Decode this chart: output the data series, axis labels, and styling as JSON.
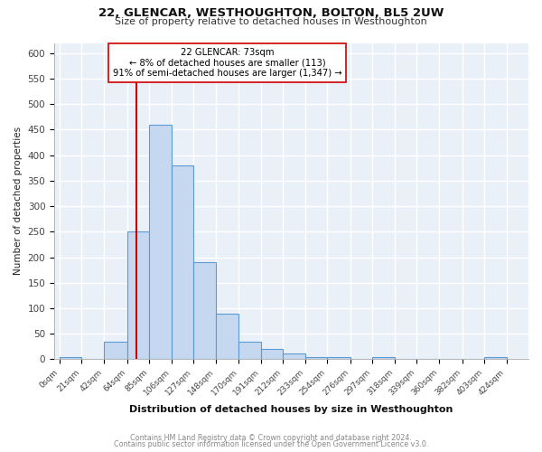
{
  "title1": "22, GLENCAR, WESTHOUGHTON, BOLTON, BL5 2UW",
  "title2": "Size of property relative to detached houses in Westhoughton",
  "xlabel": "Distribution of detached houses by size in Westhoughton",
  "ylabel": "Number of detached properties",
  "bar_edges": [
    0,
    21,
    42,
    64,
    85,
    106,
    127,
    148,
    170,
    191,
    212,
    233,
    254,
    276,
    297,
    318,
    339,
    360,
    382,
    403,
    424
  ],
  "bar_heights": [
    5,
    0,
    35,
    250,
    460,
    380,
    190,
    90,
    35,
    20,
    12,
    5,
    5,
    0,
    5,
    0,
    0,
    0,
    0,
    5
  ],
  "bar_color": "#c5d8f0",
  "bar_edge_color": "#5b9bd5",
  "bar_linewidth": 0.8,
  "vline_x": 73,
  "vline_color": "#cc0000",
  "vline_linewidth": 1.5,
  "annotation_text": "22 GLENCAR: 73sqm\n← 8% of detached houses are smaller (113)\n91% of semi-detached houses are larger (1,347) →",
  "annotation_box_color": "#ffffff",
  "annotation_box_edge": "#cc0000",
  "ylim": [
    0,
    620
  ],
  "yticks": [
    0,
    50,
    100,
    150,
    200,
    250,
    300,
    350,
    400,
    450,
    500,
    550,
    600
  ],
  "tick_labels": [
    "0sqm",
    "21sqm",
    "42sqm",
    "64sqm",
    "85sqm",
    "106sqm",
    "127sqm",
    "148sqm",
    "170sqm",
    "191sqm",
    "212sqm",
    "233sqm",
    "254sqm",
    "276sqm",
    "297sqm",
    "318sqm",
    "339sqm",
    "360sqm",
    "382sqm",
    "403sqm",
    "424sqm"
  ],
  "background_color": "#eaf0f8",
  "grid_color": "#ffffff",
  "footer1": "Contains HM Land Registry data © Crown copyright and database right 2024.",
  "footer2": "Contains public sector information licensed under the Open Government Licence v3.0."
}
